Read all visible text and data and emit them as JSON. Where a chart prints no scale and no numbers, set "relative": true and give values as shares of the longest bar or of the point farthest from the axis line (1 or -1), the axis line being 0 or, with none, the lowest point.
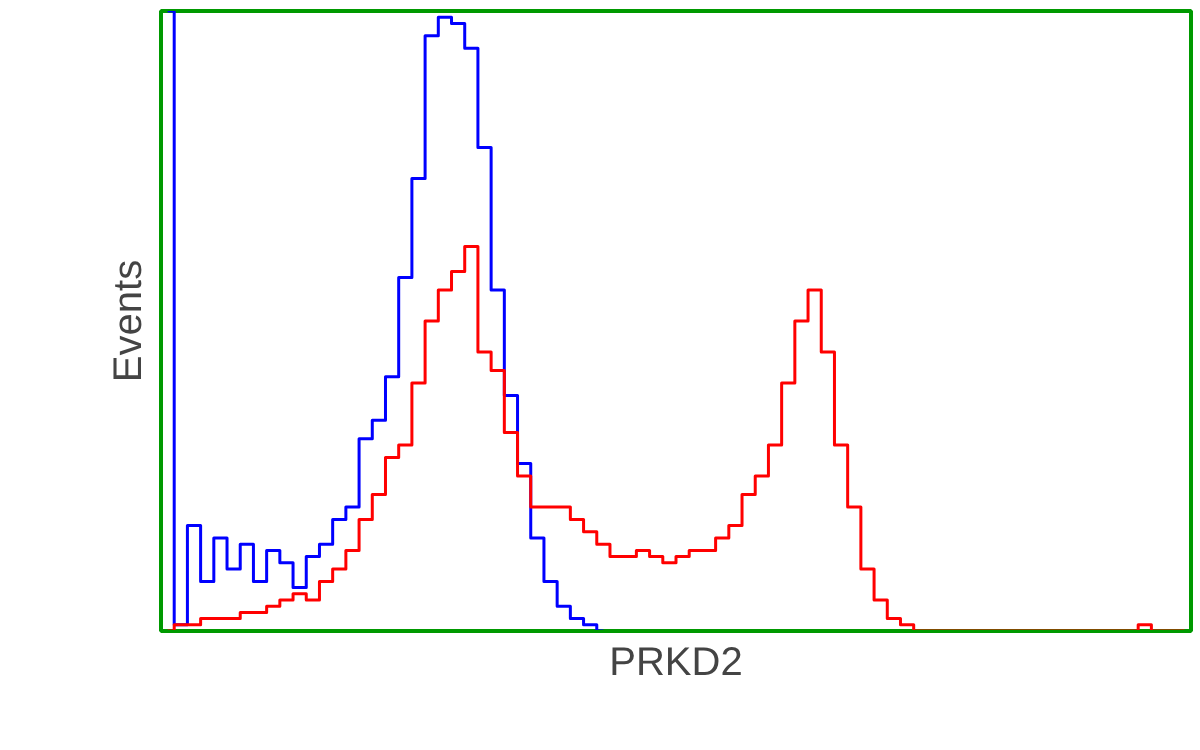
{
  "chart_data": {
    "type": "step",
    "xlabel": "PRKD2",
    "ylabel": "Events",
    "relative": true,
    "categories": [
      null,
      null,
      null,
      null,
      null,
      null,
      null,
      null,
      null,
      null,
      null,
      null,
      null,
      null,
      null,
      null,
      null,
      null,
      null,
      null,
      null,
      null,
      null,
      null,
      null,
      null,
      null,
      null,
      null,
      null,
      null,
      null,
      null,
      null,
      null,
      null,
      null,
      null,
      null,
      null,
      null,
      null,
      null,
      null,
      null,
      null,
      null,
      null,
      null,
      null,
      null,
      null,
      null,
      null,
      null,
      null,
      null,
      null,
      null,
      null,
      null,
      null,
      null,
      null,
      null,
      null,
      null,
      null,
      null,
      null,
      null,
      null,
      null,
      null,
      null,
      null,
      null,
      null
    ],
    "series": [
      {
        "color": "#0000ff",
        "values": [
          1.0,
          0.01,
          0.17,
          0.08,
          0.15,
          0.1,
          0.14,
          0.08,
          0.13,
          0.11,
          0.07,
          0.12,
          0.14,
          0.18,
          0.2,
          0.31,
          0.34,
          0.41,
          0.57,
          0.73,
          0.96,
          0.99,
          0.98,
          0.94,
          0.78,
          0.55,
          0.38,
          0.27,
          0.15,
          0.08,
          0.04,
          0.02,
          0.01,
          0.0,
          null,
          null,
          null,
          null,
          null,
          null,
          null,
          null,
          null,
          null,
          null,
          null,
          null,
          null,
          null,
          null,
          null,
          null,
          null,
          null,
          null,
          null,
          null,
          null,
          null,
          null,
          null,
          null,
          null,
          null,
          null,
          null,
          null,
          null,
          null,
          null,
          null,
          null,
          null,
          null,
          null,
          null,
          null,
          null
        ]
      },
      {
        "color": "#ff0000",
        "values": [
          0.0,
          0.01,
          0.01,
          0.02,
          0.02,
          0.02,
          0.03,
          0.03,
          0.04,
          0.05,
          0.06,
          0.05,
          0.08,
          0.1,
          0.13,
          0.18,
          0.22,
          0.28,
          0.3,
          0.4,
          0.5,
          0.55,
          0.58,
          0.62,
          0.45,
          0.42,
          0.32,
          0.25,
          0.2,
          0.2,
          0.2,
          0.18,
          0.16,
          0.14,
          0.12,
          0.12,
          0.13,
          0.12,
          0.11,
          0.12,
          0.13,
          0.13,
          0.15,
          0.17,
          0.22,
          0.25,
          0.3,
          0.4,
          0.5,
          0.55,
          0.45,
          0.3,
          0.2,
          0.1,
          0.05,
          0.02,
          0.01,
          0.0,
          0.0,
          0.0,
          0.0,
          0.0,
          0.0,
          0.0,
          0.0,
          0.0,
          0.0,
          0.0,
          0.0,
          0.0,
          0.0,
          0.0,
          0.0,
          0.0,
          0.01,
          0.0,
          0.0,
          0.0
        ]
      }
    ]
  }
}
